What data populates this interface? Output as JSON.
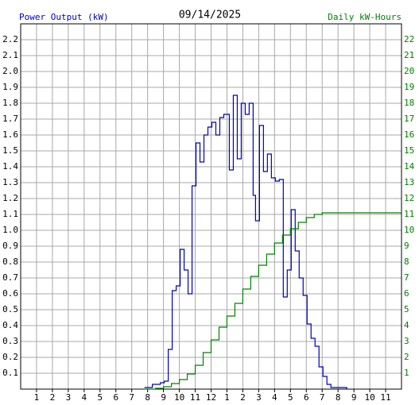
{
  "chart_data": {
    "type": "line",
    "step": true,
    "title": "09/14/2025",
    "ylabel": "Power Output (kW)",
    "y2label": "Daily kW-Hours",
    "grid": true,
    "xlim": [
      0,
      24
    ],
    "xticks": [
      1,
      2,
      3,
      4,
      5,
      6,
      7,
      8,
      9,
      10,
      11,
      12,
      {
        "value": 13,
        "label": "1"
      },
      {
        "value": 14,
        "label": "2"
      },
      {
        "value": 15,
        "label": "3"
      },
      {
        "value": 16,
        "label": "4"
      },
      {
        "value": 17,
        "label": "5"
      },
      {
        "value": 18,
        "label": "6"
      },
      {
        "value": 19,
        "label": "7"
      },
      {
        "value": 20,
        "label": "8"
      },
      {
        "value": 21,
        "label": "9"
      },
      {
        "value": 22,
        "label": "10"
      },
      {
        "value": 23,
        "label": "11"
      }
    ],
    "ylim": [
      0,
      2.3
    ],
    "yticks": [
      0.1,
      0.2,
      0.3,
      0.4,
      0.5,
      0.6,
      0.7,
      0.8,
      0.9,
      {
        "value": 1,
        "label": "1.0"
      },
      1.1,
      1.2,
      1.3,
      1.4,
      1.5,
      1.6,
      1.7,
      1.8,
      1.9,
      {
        "value": 2,
        "label": "2.0"
      },
      2.1,
      2.2
    ],
    "y2lim": [
      0,
      23
    ],
    "y2ticks": [
      1,
      2,
      3,
      4,
      5,
      6,
      7,
      8,
      9,
      10,
      11,
      12,
      13,
      14,
      15,
      16,
      17,
      18,
      19,
      20,
      21,
      22
    ],
    "series": [
      {
        "name": "Power Output (kW)",
        "color": "#0000c0",
        "x": [
          7.8,
          8.3,
          8.8,
          9.05,
          9.3,
          9.55,
          9.8,
          10.05,
          10.3,
          10.55,
          10.8,
          11.05,
          11.3,
          11.55,
          11.8,
          12.05,
          12.3,
          12.55,
          12.8,
          13.15,
          13.4,
          13.65,
          13.9,
          14.15,
          14.4,
          14.65,
          14.8,
          15.05,
          15.3,
          15.55,
          15.8,
          16.05,
          16.3,
          16.55,
          16.8,
          17.05,
          17.3,
          17.55,
          17.8,
          18.05,
          18.3,
          18.55,
          18.8,
          19.05,
          19.3,
          19.55,
          20.55
        ],
        "values": [
          0.01,
          0.03,
          0.04,
          0.05,
          0.25,
          0.62,
          0.65,
          0.88,
          0.75,
          0.6,
          1.28,
          1.55,
          1.43,
          1.6,
          1.65,
          1.68,
          1.6,
          1.71,
          1.73,
          1.38,
          1.85,
          1.45,
          1.8,
          1.73,
          1.8,
          1.22,
          1.06,
          1.66,
          1.37,
          1.48,
          1.33,
          1.31,
          1.32,
          0.58,
          0.75,
          1.13,
          0.87,
          0.7,
          0.59,
          0.41,
          0.32,
          0.27,
          0.14,
          0.08,
          0.03,
          0.01,
          0
        ]
      },
      {
        "name": "Daily kW-Hours",
        "color": "#008000",
        "axis": "y2",
        "x": [
          7.8,
          8.5,
          9.0,
          9.5,
          10.0,
          10.5,
          11.0,
          11.5,
          12.0,
          12.5,
          13.0,
          13.5,
          14.0,
          14.5,
          15.0,
          15.5,
          16.0,
          16.5,
          17.0,
          17.5,
          18.0,
          18.5,
          19.0,
          24
        ],
        "values": [
          0,
          0.05,
          0.15,
          0.35,
          0.6,
          0.95,
          1.5,
          2.3,
          3.1,
          3.9,
          4.6,
          5.4,
          6.3,
          7.1,
          7.8,
          8.5,
          9.2,
          9.7,
          10.1,
          10.5,
          10.8,
          11.0,
          11.1,
          11.1
        ]
      }
    ]
  }
}
